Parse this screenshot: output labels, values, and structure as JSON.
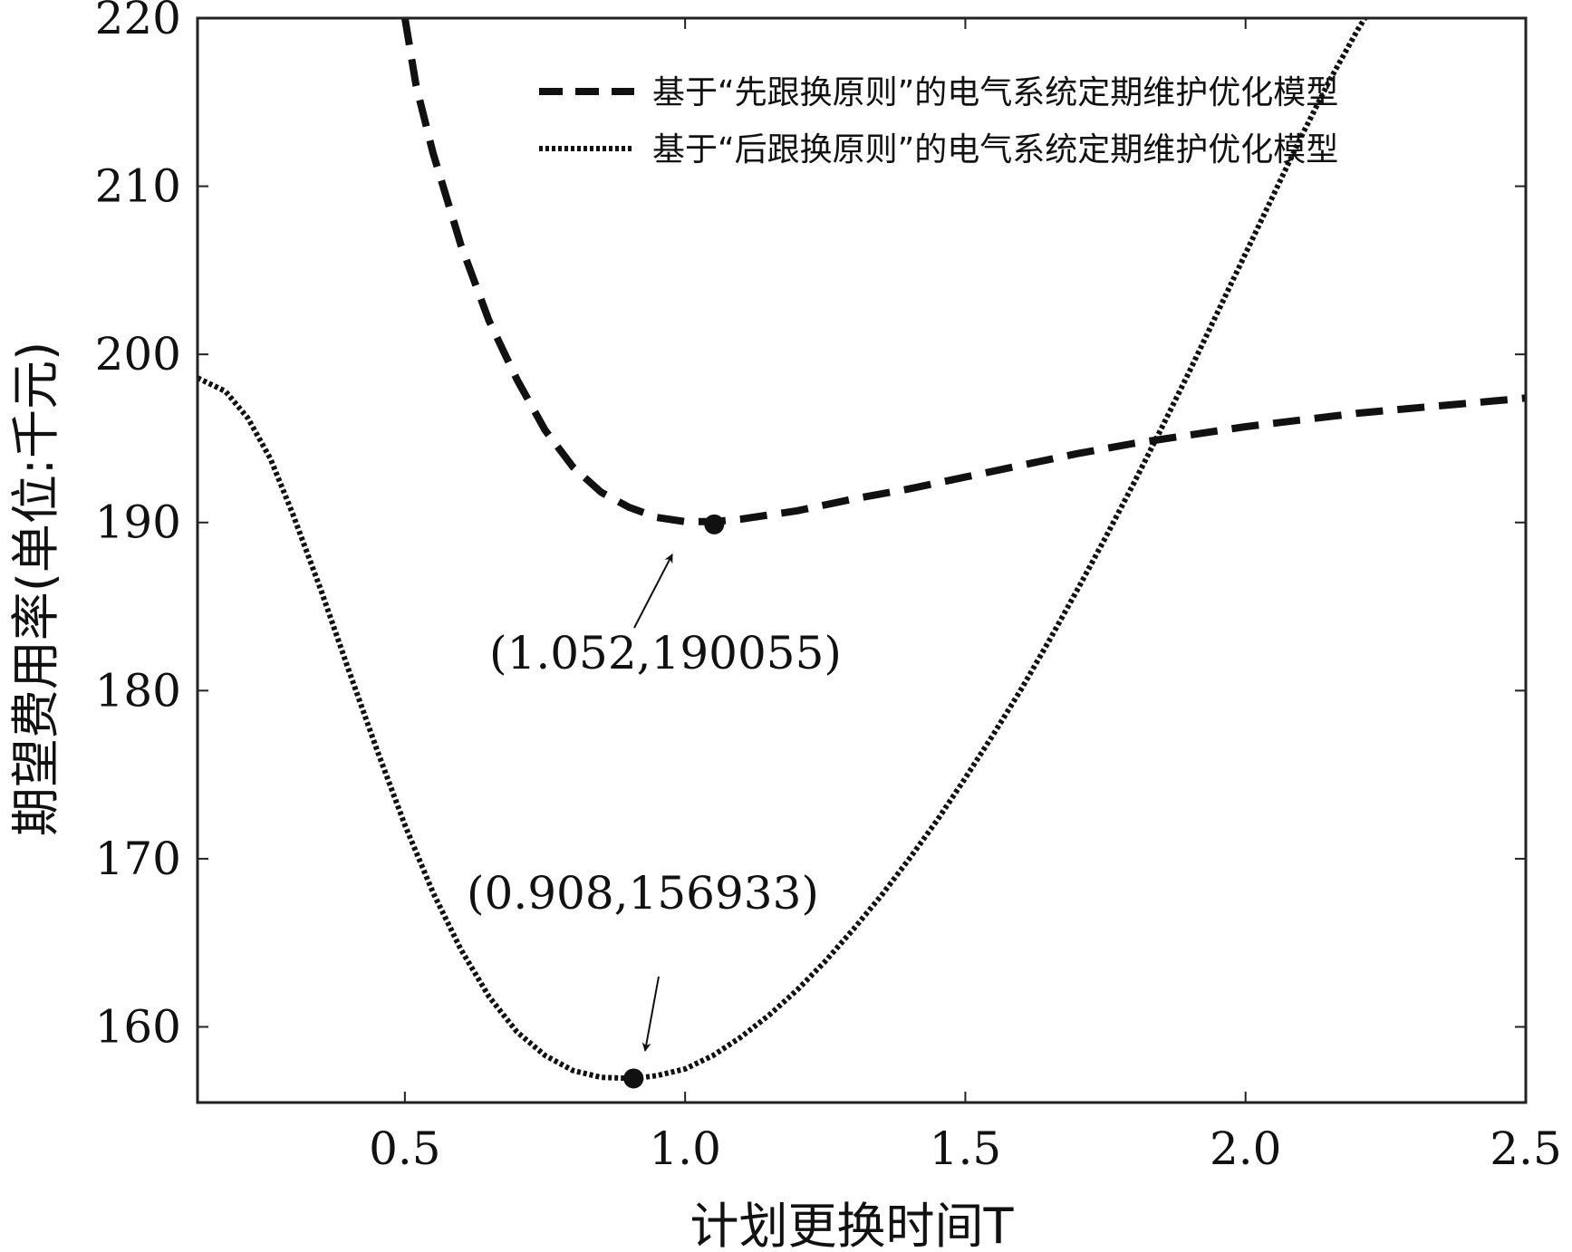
{
  "chart_data": {
    "type": "line",
    "title": "",
    "xlabel": "计划更换时间T",
    "ylabel": "期望费用率(单位:千元)",
    "xlim": [
      0.13,
      2.5
    ],
    "ylim": [
      155.5,
      220
    ],
    "xticks": [
      {
        "value": 0.5,
        "label": "0.5"
      },
      {
        "value": 1.0,
        "label": "1.0"
      },
      {
        "value": 1.5,
        "label": "1.5"
      },
      {
        "value": 2.0,
        "label": "2.0"
      },
      {
        "value": 2.5,
        "label": "2.5"
      }
    ],
    "yticks": [
      {
        "value": 160,
        "label": "160"
      },
      {
        "value": 170,
        "label": "170"
      },
      {
        "value": 180,
        "label": "180"
      },
      {
        "value": 190,
        "label": "190"
      },
      {
        "value": 200,
        "label": "200"
      },
      {
        "value": 210,
        "label": "210"
      },
      {
        "value": 220,
        "label": "220"
      }
    ],
    "grid": false,
    "legend_position": "top-right",
    "series": [
      {
        "name": "基于“先跟换原则”的电气系统定期维护优化模型",
        "style": "dashed",
        "color": "#111111",
        "x": [
          0.5,
          0.52,
          0.55,
          0.6,
          0.65,
          0.7,
          0.75,
          0.8,
          0.85,
          0.9,
          0.95,
          1.0,
          1.052,
          1.1,
          1.2,
          1.3,
          1.4,
          1.5,
          1.6,
          1.7,
          1.8,
          1.9,
          2.0,
          2.1,
          2.2,
          2.3,
          2.4,
          2.5
        ],
        "y": [
          220,
          216,
          212,
          206.5,
          202,
          198.5,
          195.5,
          193.3,
          191.8,
          190.9,
          190.3,
          190.05,
          190.05,
          190.2,
          190.7,
          191.4,
          192.0,
          192.7,
          193.4,
          194.1,
          194.7,
          195.2,
          195.7,
          196.1,
          196.5,
          196.8,
          197.1,
          197.4
        ]
      },
      {
        "name": "基于“后跟换原则”的电气系统定期维护优化模型",
        "style": "dotted",
        "color": "#111111",
        "x": [
          0.13,
          0.18,
          0.22,
          0.26,
          0.3,
          0.35,
          0.4,
          0.45,
          0.5,
          0.55,
          0.6,
          0.65,
          0.7,
          0.75,
          0.8,
          0.85,
          0.908,
          0.95,
          1.0,
          1.05,
          1.1,
          1.15,
          1.2,
          1.25,
          1.3,
          1.35,
          1.4,
          1.45,
          1.5,
          1.55,
          1.6,
          1.65,
          1.7,
          1.75,
          1.8,
          1.85,
          1.9,
          1.95,
          2.0,
          2.05,
          2.1,
          2.15,
          2.2,
          2.25,
          2.3
        ],
        "y": [
          198.6,
          197.8,
          196.2,
          193.8,
          190.5,
          186.0,
          181.2,
          176.5,
          172.0,
          168.0,
          164.6,
          161.8,
          159.7,
          158.3,
          157.4,
          157.0,
          156.93,
          157.1,
          157.5,
          158.3,
          159.4,
          160.7,
          162.2,
          163.9,
          165.8,
          167.8,
          170.0,
          172.3,
          174.8,
          177.4,
          180.1,
          183.0,
          186.0,
          189.1,
          192.3,
          195.6,
          199.0,
          202.5,
          206.0,
          209.5,
          213.0,
          216.3,
          219.3,
          222.0,
          224.5
        ]
      }
    ],
    "annotations": [
      {
        "text": "(1.052,190055)",
        "x": 1.052,
        "y": 190.05,
        "marker": "dot"
      },
      {
        "text": "(0.908,156933)",
        "x": 0.908,
        "y": 156.93,
        "marker": "dot"
      }
    ]
  }
}
